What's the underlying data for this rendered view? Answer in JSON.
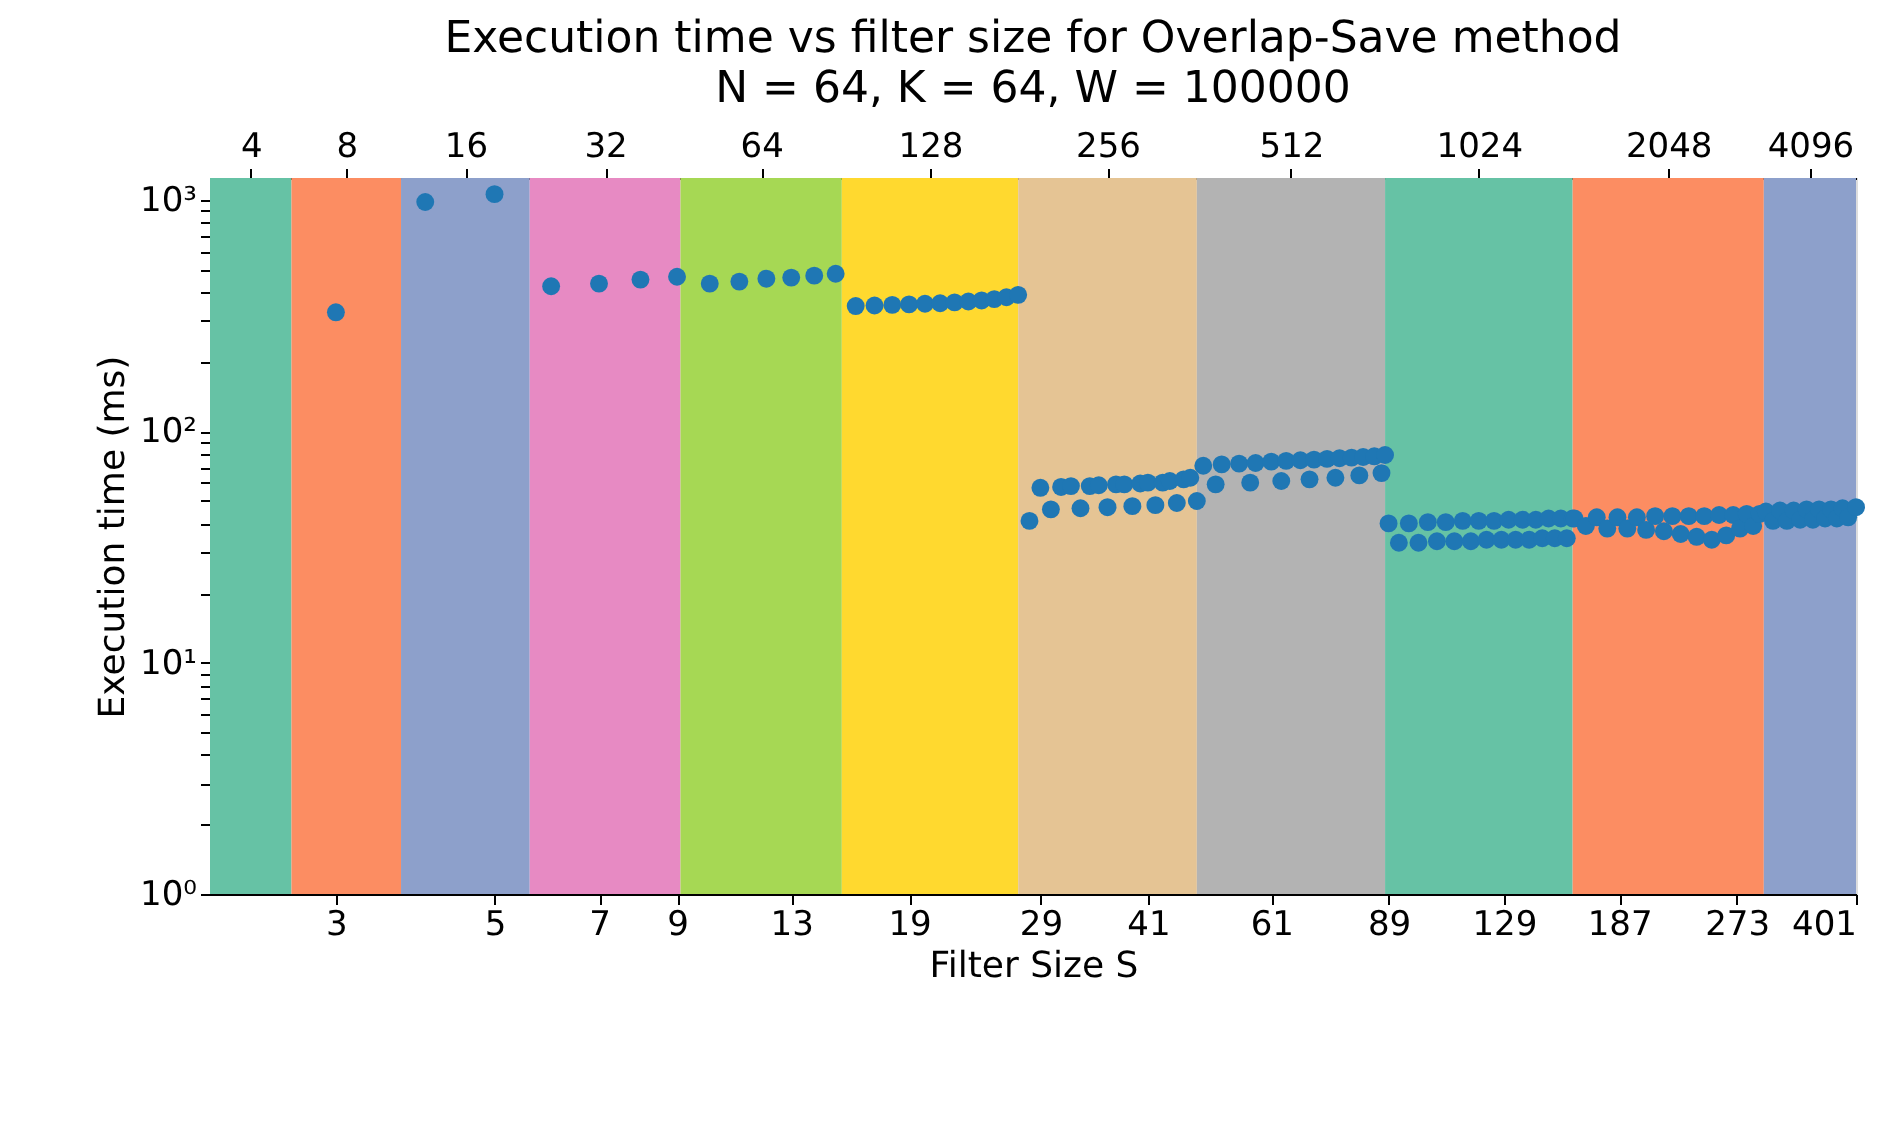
{
  "chart_data": {
    "type": "scatter",
    "title": "Execution time vs filter size for Overlap-Save method",
    "subtitle": "N = 64, K = 64, W = 100000",
    "xlabel": "Filter Size S",
    "ylabel": "Execution time (ms)",
    "log": "xy",
    "grid": false,
    "marker": "circle",
    "xlim": [
      2,
      401
    ],
    "xticks": [
      3,
      5,
      7,
      9,
      13,
      19,
      29,
      41,
      61,
      89,
      129,
      187,
      273,
      401
    ],
    "ylim": [
      1,
      1245
    ],
    "yticks": [
      {
        "value": 1,
        "label": "10⁰"
      },
      {
        "value": 2,
        "label": null
      },
      {
        "value": 3,
        "label": null
      },
      {
        "value": 4,
        "label": null
      },
      {
        "value": 5,
        "label": null
      },
      {
        "value": 6,
        "label": null
      },
      {
        "value": 7,
        "label": null
      },
      {
        "value": 8,
        "label": null
      },
      {
        "value": 9,
        "label": null
      },
      {
        "value": 10,
        "label": "10¹"
      },
      {
        "value": 20,
        "label": null
      },
      {
        "value": 30,
        "label": null
      },
      {
        "value": 40,
        "label": null
      },
      {
        "value": 50,
        "label": null
      },
      {
        "value": 60,
        "label": null
      },
      {
        "value": 70,
        "label": null
      },
      {
        "value": 80,
        "label": null
      },
      {
        "value": 90,
        "label": null
      },
      {
        "value": 100,
        "label": "10²"
      },
      {
        "value": 200,
        "label": null
      },
      {
        "value": 300,
        "label": null
      },
      {
        "value": 400,
        "label": null
      },
      {
        "value": 500,
        "label": null
      },
      {
        "value": 600,
        "label": null
      },
      {
        "value": 700,
        "label": null
      },
      {
        "value": 800,
        "label": null
      },
      {
        "value": 900,
        "label": null
      },
      {
        "value": 1000,
        "label": "10³"
      }
    ],
    "bands": [
      {
        "axis": "x",
        "from": 2,
        "to": 2.6,
        "label": "4",
        "color": "#66c2a5"
      },
      {
        "axis": "x",
        "from": 2.6,
        "to": 3.7,
        "label": "8",
        "color": "#fc8d62"
      },
      {
        "axis": "x",
        "from": 3.7,
        "to": 5.6,
        "label": "16",
        "color": "#8da0cb"
      },
      {
        "axis": "x",
        "from": 5.6,
        "to": 9.1,
        "label": "32",
        "color": "#e78ac3"
      },
      {
        "axis": "x",
        "from": 9.1,
        "to": 15.3,
        "label": "64",
        "color": "#a6d854"
      },
      {
        "axis": "x",
        "from": 15.3,
        "to": 27,
        "label": "128",
        "color": "#ffd92f"
      },
      {
        "axis": "x",
        "from": 27,
        "to": 48,
        "label": "256",
        "color": "#e5c494"
      },
      {
        "axis": "x",
        "from": 48,
        "to": 88,
        "label": "512",
        "color": "#b3b3b3"
      },
      {
        "axis": "x",
        "from": 88,
        "to": 161,
        "label": "1024",
        "color": "#66c2a5"
      },
      {
        "axis": "x",
        "from": 161,
        "to": 298,
        "label": "2048",
        "color": "#fc8d62"
      },
      {
        "axis": "x",
        "from": 298,
        "to": 401,
        "label": "4096",
        "color": "#8da0cb"
      }
    ],
    "series": [
      {
        "color": "#1f77b4",
        "x": [
          3,
          4,
          5,
          6,
          7,
          8,
          9,
          10,
          11,
          12,
          13,
          14,
          15,
          16,
          17,
          18,
          19,
          20,
          21,
          22,
          23,
          24,
          25,
          26,
          27,
          28,
          29,
          30,
          31,
          32,
          33,
          34,
          35,
          36,
          37,
          38,
          39,
          40,
          41,
          42,
          43,
          44,
          45,
          46,
          47,
          48,
          49,
          51,
          52,
          55,
          57,
          58,
          61,
          63,
          64,
          67,
          69,
          70,
          73,
          75,
          76,
          79,
          81,
          82,
          85,
          87,
          88,
          89,
          92,
          95,
          98,
          101,
          104,
          107,
          110,
          113,
          116,
          119,
          122,
          125,
          128,
          131,
          134,
          137,
          140,
          143,
          146,
          149,
          152,
          155,
          158,
          161,
          162,
          168,
          174,
          180,
          186,
          192,
          198,
          204,
          210,
          216,
          222,
          228,
          234,
          240,
          246,
          252,
          258,
          264,
          270,
          276,
          282,
          288,
          294,
          300,
          307,
          314,
          321,
          328,
          335,
          342,
          349,
          356,
          363,
          370,
          377,
          384,
          391,
          401
        ],
        "values": [
          327,
          980,
          1060,
          424,
          435,
          453,
          466,
          435,
          444,
          457,
          462,
          471,
          480,
          348,
          350,
          352,
          354,
          356,
          358,
          361,
          364,
          368,
          373,
          380,
          389,
          41,
          57,
          46,
          57.5,
          58,
          46.5,
          58,
          58.5,
          47,
          59,
          59,
          47.5,
          59.5,
          60,
          48,
          60,
          61,
          49,
          62,
          63,
          50,
          71,
          59,
          72,
          72.5,
          60,
          73,
          74,
          61,
          74.5,
          75,
          62,
          75.5,
          76,
          63,
          76.5,
          77,
          64.5,
          77.5,
          78,
          66,
          79,
          40,
          33,
          40,
          33,
          40.5,
          33.5,
          40.5,
          33.5,
          41,
          33.5,
          41,
          34,
          41,
          34,
          41.5,
          34,
          41.5,
          34,
          41.5,
          34.5,
          42,
          34.5,
          42,
          34.5,
          42,
          42,
          39,
          42.5,
          38,
          42.5,
          38,
          42.5,
          37.5,
          43,
          37,
          43,
          36,
          43,
          35,
          43,
          34,
          43.5,
          35.5,
          43.5,
          38,
          44,
          39,
          44,
          45,
          41,
          45.5,
          41,
          45.5,
          41.5,
          46,
          41.5,
          46,
          42,
          46,
          42,
          46.5,
          42.5,
          47
        ]
      }
    ]
  }
}
